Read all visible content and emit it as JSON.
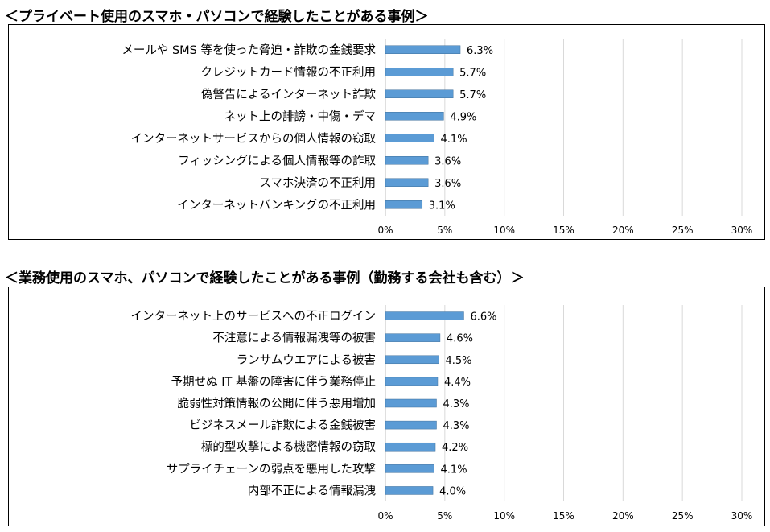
{
  "colors": {
    "bar": "#5B9BD5",
    "bar_edge": "#41719C",
    "grid": "#d9d9d9",
    "axis": "#bfbfbf"
  },
  "chart_data": [
    {
      "type": "bar",
      "orientation": "horizontal",
      "title": "＜プライベート使用のスマホ・パソコンで経験したことがある事例＞",
      "categories": [
        "メールや SMS 等を使った脅迫・詐欺の金銭要求",
        "クレジットカード情報の不正利用",
        "偽警告によるインターネット詐欺",
        "ネット上の誹謗・中傷・デマ",
        "インターネットサービスからの個人情報の窃取",
        "フィッシングによる個人情報等の詐取",
        "スマホ決済の不正利用",
        "インターネットバンキングの不正利用"
      ],
      "values": [
        6.3,
        5.7,
        5.7,
        4.9,
        4.1,
        3.6,
        3.6,
        3.1
      ],
      "value_labels": [
        "6.3%",
        "5.7%",
        "5.7%",
        "4.9%",
        "4.1%",
        "3.6%",
        "3.6%",
        "3.1%"
      ],
      "xlim": [
        0,
        30
      ],
      "xticks": [
        0,
        5,
        10,
        15,
        20,
        25,
        30
      ],
      "xtick_labels": [
        "0%",
        "5%",
        "10%",
        "15%",
        "20%",
        "25%",
        "30%"
      ],
      "grid": true
    },
    {
      "type": "bar",
      "orientation": "horizontal",
      "title": "＜業務使用のスマホ、パソコンで経験したことがある事例（勤務する会社も含む）＞",
      "categories": [
        "インターネット上のサービスへの不正ログイン",
        "不注意による情報漏洩等の被害",
        "ランサムウエアによる被害",
        "予期せぬ IT 基盤の障害に伴う業務停止",
        "脆弱性対策情報の公開に伴う悪用増加",
        "ビジネスメール詐欺による金銭被害",
        "標的型攻撃による機密情報の窃取",
        "サプライチェーンの弱点を悪用した攻撃",
        "内部不正による情報漏洩"
      ],
      "values": [
        6.6,
        4.6,
        4.5,
        4.4,
        4.3,
        4.3,
        4.2,
        4.1,
        4.0
      ],
      "value_labels": [
        "6.6%",
        "4.6%",
        "4.5%",
        "4.4%",
        "4.3%",
        "4.3%",
        "4.2%",
        "4.1%",
        "4.0%"
      ],
      "xlim": [
        0,
        30
      ],
      "xticks": [
        0,
        5,
        10,
        15,
        20,
        25,
        30
      ],
      "xtick_labels": [
        "0%",
        "5%",
        "10%",
        "15%",
        "20%",
        "25%",
        "30%"
      ],
      "grid": true
    }
  ]
}
